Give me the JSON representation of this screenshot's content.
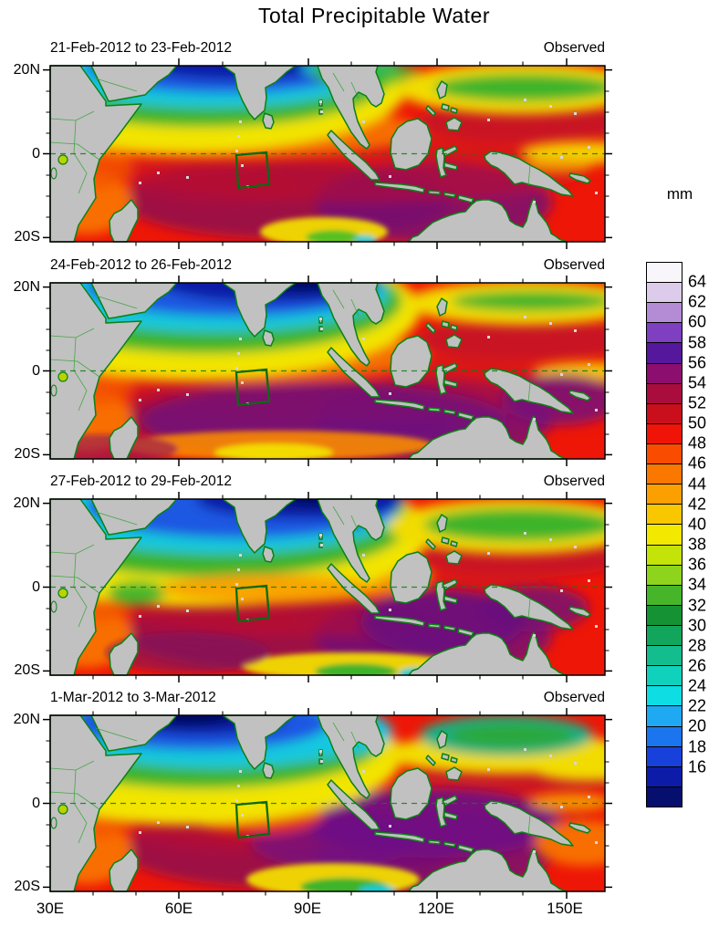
{
  "title": "Total Precipitable Water",
  "panels": [
    {
      "date_range": "21-Feb-2012 to 23-Feb-2012",
      "source": "Observed"
    },
    {
      "date_range": "24-Feb-2012 to 26-Feb-2012",
      "source": "Observed"
    },
    {
      "date_range": "27-Feb-2012 to 29-Feb-2012",
      "source": "Observed"
    },
    {
      "date_range": "1-Mar-2012 to 3-Mar-2012",
      "source": "Observed"
    }
  ],
  "y_axis": {
    "tick_labels": [
      "20N",
      "0",
      "20S"
    ]
  },
  "x_axis": {
    "tick_labels": [
      "30E",
      "60E",
      "90E",
      "120E",
      "150E"
    ]
  },
  "colorbar": {
    "unit": "mm",
    "tick_labels": [
      "64",
      "62",
      "60",
      "58",
      "56",
      "54",
      "52",
      "50",
      "48",
      "46",
      "44",
      "42",
      "40",
      "38",
      "36",
      "34",
      "32",
      "30",
      "28",
      "26",
      "24",
      "22",
      "20",
      "18",
      "16"
    ],
    "cell_colors": [
      "#f8f5fb",
      "#dccbea",
      "#b48cd6",
      "#7e3fc0",
      "#55179c",
      "#8c0e6e",
      "#a80d3e",
      "#c90e1c",
      "#ef1407",
      "#fa4c00",
      "#fb7800",
      "#fba000",
      "#f9c700",
      "#f2e800",
      "#c3e309",
      "#8ed41c",
      "#47b52a",
      "#159234",
      "#12a65c",
      "#13bd8e",
      "#10d2bc",
      "#0edde4",
      "#1ea9f2",
      "#1b75ee",
      "#1840da",
      "#0d1ca8",
      "#060f6e"
    ]
  },
  "chart_data": {
    "type": "heatmap",
    "subtype": "filled-contour geographic map, 4-panel time sequence",
    "variable": "Total Precipitable Water",
    "unit": "mm",
    "title": "Total Precipitable Water",
    "lon_range_deg_east": [
      30,
      159
    ],
    "lat_range_deg": [
      -22,
      21
    ],
    "x_tick_labels": [
      "30E",
      "60E",
      "90E",
      "120E",
      "150E"
    ],
    "y_tick_labels": [
      "20N",
      "0",
      "20S"
    ],
    "colorbar_levels_mm": [
      16,
      18,
      20,
      22,
      24,
      26,
      28,
      30,
      32,
      34,
      36,
      38,
      40,
      42,
      44,
      46,
      48,
      50,
      52,
      54,
      56,
      58,
      60,
      62,
      64
    ],
    "legend_position": "right",
    "panels": [
      {
        "label": "21-Feb-2012 to 23-Feb-2012",
        "source": "Observed",
        "approx_field_mm": [
          {
            "region": "NW Arabian Sea / N Bay of Bengal",
            "value": "14-22"
          },
          {
            "region": "transition band 8-15N Indian Ocean",
            "value": "26-38"
          },
          {
            "region": "ITCZ band 0-15S across Indian Ocean",
            "value": "48-58"
          },
          {
            "region": "south of Sumatra/Java and 130-150E south of equator",
            "value": "54-62"
          },
          {
            "region": "NW Pacific band 10-18N east of 110E",
            "value": "34-42"
          },
          {
            "region": "equatorial strip east of 140E",
            "value": "40-46"
          }
        ]
      },
      {
        "label": "24-Feb-2012 to 26-Feb-2012",
        "source": "Observed",
        "approx_field_mm": [
          {
            "region": "N Bay of Bengal driest core",
            "value": "<16"
          },
          {
            "region": "N Arabian Sea",
            "value": "16-24"
          },
          {
            "region": "broad S Indian Ocean and Maritime Continent",
            "value": "54-62"
          },
          {
            "region": "band near 18S, 50-100E",
            "value": "42-48"
          },
          {
            "region": "NW Pacific band 12-18N",
            "value": "34-42"
          }
        ]
      },
      {
        "label": "27-Feb-2012 to 29-Feb-2012",
        "source": "Observed",
        "approx_field_mm": [
          {
            "region": "NE Bay of Bengal driest core",
            "value": "<16"
          },
          {
            "region": "yellow band near equator W Indian Ocean",
            "value": "38-42"
          },
          {
            "region": "green patch near 50E just south of equator",
            "value": "34-36"
          },
          {
            "region": "Maritime Continent south of equator",
            "value": "54-62"
          },
          {
            "region": "NE Pacific patch 10-18N",
            "value": "34-40"
          },
          {
            "region": "near 100E, 20S",
            "value": "30-38"
          }
        ]
      },
      {
        "label": "1-Mar-2012 to 3-Mar-2012",
        "source": "Observed",
        "approx_field_mm": [
          {
            "region": "N Arabian Sea",
            "value": "<18"
          },
          {
            "region": "Bay of Bengal",
            "value": "22-30"
          },
          {
            "region": "band near 5N W Indian Ocean",
            "value": "38-44"
          },
          {
            "region": "patch 115-140E, 8-18N",
            "value": "28-34"
          },
          {
            "region": "south of equator 95-145E",
            "value": "54-62"
          },
          {
            "region": "near 110E, 20S",
            "value": "30-40"
          }
        ]
      }
    ],
    "annotations": [
      "dashed green line marks the equator in every panel",
      "green outlined index box near 72E-80E, 0-8S in every panel",
      "land masses gray with green coastlines and thin green country borders",
      "small light-gray dots mark islands/stations over the ocean"
    ]
  }
}
